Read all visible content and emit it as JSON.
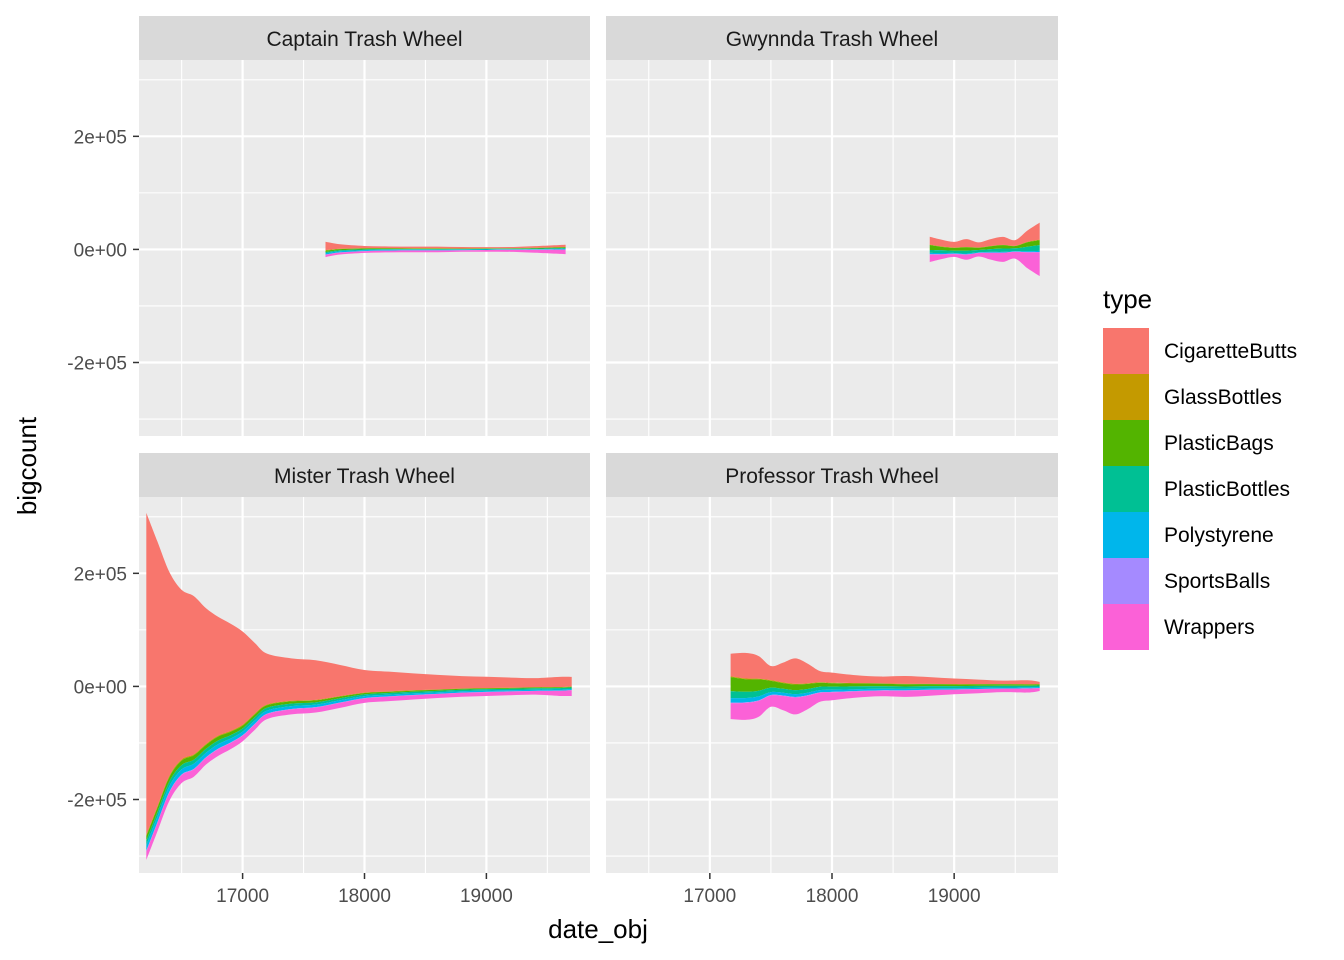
{
  "chart_data": {
    "type": "area",
    "subtype": "streamgraph-facetted",
    "xlabel": "date_obj",
    "ylabel": "bigcount",
    "xlim": [
      16150,
      19850
    ],
    "ylim": [
      -330000,
      335000
    ],
    "x_ticks": [
      17000,
      18000,
      19000
    ],
    "x_tick_labels": [
      "17000",
      "18000",
      "19000"
    ],
    "y_ticks": [
      200000,
      0,
      -200000
    ],
    "y_tick_labels": [
      "2e+05",
      "0e+00",
      "-2e+05"
    ],
    "legend_title": "type",
    "legend_placement": "right",
    "grid": true,
    "panel_background": "#ebebeb",
    "strip_background": "#d9d9d9",
    "types": [
      "CigaretteButts",
      "GlassBottles",
      "PlasticBags",
      "PlasticBottles",
      "Polystyrene",
      "SportsBalls",
      "Wrappers"
    ],
    "colors": [
      "#F8766D",
      "#C49A00",
      "#53B400",
      "#00C094",
      "#00B6EB",
      "#A58AFF",
      "#FB61D7"
    ],
    "panels": [
      {
        "title": "Captain Trash Wheel",
        "x": [
          17680,
          17800,
          18000,
          18200,
          18400,
          18600,
          18800,
          19000,
          19200,
          19400,
          19650
        ],
        "series": {
          "CigaretteButts": [
            15000,
            8000,
            4000,
            3000,
            3000,
            3000,
            2500,
            2000,
            2000,
            3000,
            4000
          ],
          "GlassBottles": [
            800,
            600,
            500,
            500,
            500,
            500,
            400,
            400,
            400,
            500,
            600
          ],
          "PlasticBags": [
            2500,
            2000,
            1500,
            1200,
            1000,
            1000,
            900,
            800,
            800,
            900,
            1200
          ],
          "PlasticBottles": [
            2000,
            1800,
            1500,
            1300,
            1200,
            1200,
            1100,
            1000,
            1000,
            1200,
            1500
          ],
          "Polystyrene": [
            2500,
            2000,
            1600,
            1300,
            1100,
            1000,
            900,
            800,
            800,
            1000,
            1200
          ],
          "SportsBalls": [
            300,
            250,
            200,
            200,
            200,
            200,
            150,
            150,
            150,
            200,
            200
          ],
          "Wrappers": [
            4000,
            3500,
            3000,
            3000,
            3000,
            3000,
            2500,
            3000,
            3500,
            5000,
            8000
          ]
        }
      },
      {
        "title": "Gwynnda Trash Wheel",
        "x": [
          18800,
          18900,
          19000,
          19100,
          19200,
          19300,
          19400,
          19500,
          19600,
          19700
        ],
        "series": {
          "CigaretteButts": [
            14000,
            12000,
            10000,
            14000,
            9000,
            12000,
            14000,
            10000,
            20000,
            30000
          ],
          "GlassBottles": [
            500,
            500,
            500,
            500,
            500,
            500,
            500,
            500,
            600,
            800
          ],
          "PlasticBags": [
            9000,
            6000,
            5000,
            6000,
            4000,
            5000,
            6000,
            4000,
            8000,
            9000
          ],
          "PlasticBottles": [
            5000,
            5000,
            4000,
            5000,
            4000,
            5000,
            6000,
            5000,
            8000,
            10000
          ],
          "Polystyrene": [
            2500,
            2000,
            1500,
            1500,
            1000,
            1200,
            1200,
            1000,
            1500,
            2000
          ],
          "SportsBalls": [
            800,
            600,
            500,
            500,
            400,
            500,
            500,
            400,
            600,
            800
          ],
          "Wrappers": [
            13000,
            8000,
            5000,
            9000,
            6000,
            12000,
            16000,
            12000,
            28000,
            42000
          ]
        }
      },
      {
        "title": "Mister Trash Wheel",
        "x": [
          16210,
          16300,
          16400,
          16500,
          16600,
          16700,
          16800,
          16900,
          17000,
          17100,
          17200,
          17400,
          17600,
          17800,
          18000,
          18200,
          18400,
          18600,
          18800,
          19000,
          19200,
          19400,
          19600,
          19700
        ],
        "series": {
          "CigaretteButts": [
            570000,
            470000,
            360000,
            300000,
            280000,
            240000,
            210000,
            190000,
            165000,
            125000,
            90000,
            75000,
            70000,
            55000,
            40000,
            35000,
            30000,
            26000,
            22000,
            20000,
            18000,
            16000,
            18000,
            17000
          ],
          "GlassBottles": [
            2000,
            2000,
            2000,
            2000,
            1500,
            1500,
            1500,
            1500,
            1500,
            1500,
            1200,
            1000,
            900,
            800,
            700,
            600,
            500,
            500,
            500,
            400,
            400,
            400,
            400,
            400
          ],
          "PlasticBags": [
            8000,
            8000,
            8000,
            8000,
            8000,
            7000,
            7000,
            6000,
            5000,
            5000,
            4500,
            4000,
            3500,
            3000,
            2500,
            2200,
            2000,
            1800,
            1600,
            1500,
            1400,
            1400,
            1400,
            1400
          ],
          "PlasticBottles": [
            8000,
            8000,
            8000,
            7500,
            7000,
            7000,
            6500,
            6000,
            5500,
            5500,
            5000,
            4500,
            4000,
            3500,
            3000,
            3000,
            3000,
            2800,
            2800,
            2600,
            2600,
            2600,
            2600,
            2600
          ],
          "Polystyrene": [
            10000,
            10000,
            10000,
            9000,
            9000,
            8000,
            8000,
            7000,
            6500,
            6000,
            5500,
            5000,
            4500,
            4000,
            3500,
            3000,
            2800,
            2600,
            2400,
            2200,
            2000,
            2000,
            2000,
            2000
          ],
          "SportsBalls": [
            1000,
            1000,
            1000,
            1000,
            900,
            900,
            800,
            800,
            700,
            700,
            600,
            600,
            500,
            500,
            400,
            400,
            400,
            300,
            300,
            300,
            300,
            300,
            300,
            300
          ],
          "Wrappers": [
            15000,
            15000,
            15000,
            14000,
            13000,
            12000,
            12000,
            11000,
            10000,
            10000,
            9000,
            9000,
            9000,
            9000,
            8000,
            8000,
            7500,
            7000,
            7000,
            7000,
            6500,
            6500,
            9000,
            10000
          ]
        }
      },
      {
        "title": "Professor Trash Wheel",
        "x": [
          17170,
          17300,
          17400,
          17500,
          17600,
          17700,
          17800,
          17900,
          18000,
          18200,
          18400,
          18600,
          18800,
          19000,
          19200,
          19400,
          19600,
          19700
        ],
        "series": {
          "CigaretteButts": [
            40000,
            45000,
            40000,
            25000,
            35000,
            45000,
            35000,
            20000,
            18000,
            14000,
            12000,
            14000,
            12000,
            10000,
            8000,
            6000,
            7000,
            4000
          ],
          "GlassBottles": [
            1500,
            1500,
            1200,
            1200,
            1200,
            1200,
            1000,
            900,
            800,
            700,
            600,
            600,
            500,
            500,
            400,
            400,
            400,
            300
          ],
          "PlasticBags": [
            25000,
            22000,
            20000,
            12000,
            10000,
            10000,
            9000,
            7000,
            6000,
            5000,
            4500,
            4000,
            3500,
            3000,
            2800,
            2500,
            2200,
            2000
          ],
          "PlasticBottles": [
            12000,
            11000,
            10000,
            8000,
            7000,
            7000,
            6500,
            6000,
            5500,
            5000,
            4500,
            4200,
            4000,
            3800,
            3500,
            3200,
            3000,
            2800
          ],
          "Polystyrene": [
            8000,
            7500,
            7000,
            5000,
            5000,
            5000,
            4500,
            4000,
            3800,
            3200,
            2800,
            2600,
            2400,
            2200,
            2000,
            1800,
            1700,
            1600
          ],
          "SportsBalls": [
            1200,
            1100,
            1000,
            900,
            900,
            900,
            800,
            700,
            700,
            600,
            500,
            500,
            500,
            400,
            400,
            400,
            400,
            300
          ],
          "Wrappers": [
            28000,
            30000,
            28000,
            20000,
            25000,
            30000,
            24000,
            16000,
            14000,
            11000,
            10000,
            11000,
            10000,
            8000,
            7000,
            6000,
            7000,
            5000
          ]
        }
      }
    ]
  }
}
